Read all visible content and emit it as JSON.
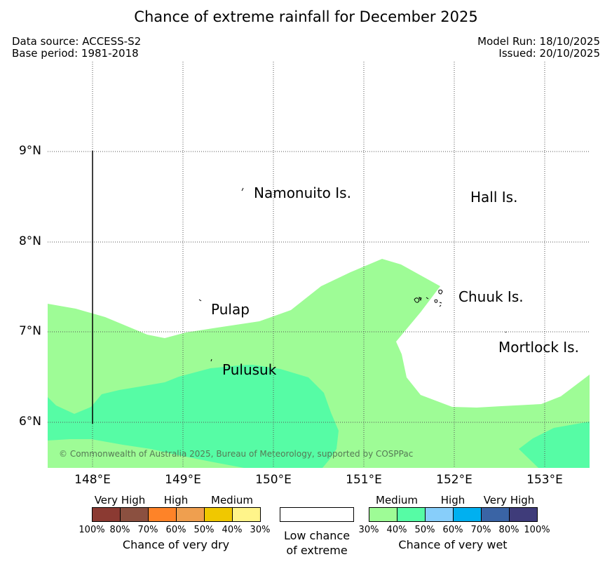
{
  "title": "Chance of extreme rainfall for December 2025",
  "header": {
    "data_source": "Data source: ACCESS-S2",
    "base_period": "Base period: 1981-2018",
    "model_run": "Model Run: 18/10/2025",
    "issued": "Issued: 20/10/2025"
  },
  "map": {
    "lat_labels": [
      "9°N",
      "8°N",
      "7°N",
      "6°N"
    ],
    "lon_labels": [
      "148°E",
      "149°E",
      "150°E",
      "151°E",
      "152°E",
      "153°E"
    ],
    "places": {
      "namonuito": "Namonuito Is.",
      "hall": "Hall Is.",
      "chuuk": "Chuuk Is.",
      "pulap": "Pulap",
      "mortlock": "Mortlock Is.",
      "pulusuk": "Pulusuk"
    },
    "copyright": "© Commonwealth of Australia 2025, Bureau of Meteorology, supported by COSPPac",
    "colors": {
      "medium_wet": "#9efc96",
      "high_wet": "#56fca5",
      "background": "#ffffff"
    }
  },
  "legend": {
    "dry": {
      "categories": [
        "Very High",
        "High",
        "Medium"
      ],
      "ticks": [
        "100%",
        "80%",
        "70%",
        "60%",
        "50%",
        "40%",
        "30%"
      ],
      "colors": [
        "#8b3a32",
        "#8b5040",
        "#fe8328",
        "#ef9f4f",
        "#f0c800",
        "#fff48a"
      ],
      "caption": "Chance of very dry"
    },
    "neutral": {
      "line1": "Low chance",
      "line2": "of extreme",
      "color": "#ffffff"
    },
    "wet": {
      "categories": [
        "Medium",
        "High",
        "Very High"
      ],
      "ticks": [
        "30%",
        "40%",
        "50%",
        "60%",
        "70%",
        "80%",
        "100%"
      ],
      "colors": [
        "#9efc96",
        "#56fca5",
        "#87cefa",
        "#00b0f0",
        "#3a64a5",
        "#3f3c7a"
      ],
      "caption": "Chance of very wet"
    }
  }
}
